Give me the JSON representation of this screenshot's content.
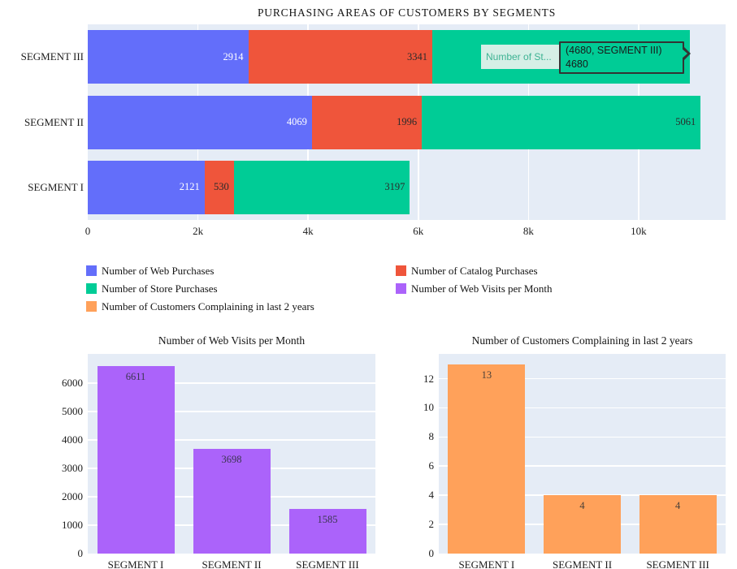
{
  "palette": {
    "blue": "#636EFA",
    "red": "#EF553B",
    "green": "#00CC96",
    "purple": "#AB63FA",
    "orange": "#FFA15A",
    "plot_bg": "#E5ECF6",
    "grid": "#FFFFFF",
    "tick_text": "#1c1c1c",
    "dark_label": "#2b2b2b",
    "white_label": "#ffffff"
  },
  "chart_data": [
    {
      "id": "purchasing-areas",
      "type": "bar",
      "orientation": "horizontal",
      "barmode": "stack",
      "title": "PURCHASING AREAS OF CUSTOMERS BY SEGMENTS",
      "categories": [
        "SEGMENT III",
        "SEGMENT II",
        "SEGMENT I"
      ],
      "series": [
        {
          "name": "Number of Web Purchases",
          "color": "#636EFA",
          "label_color": "#ffffff",
          "values": [
            2914,
            4069,
            2121
          ]
        },
        {
          "name": "Number of Catalog Purchases",
          "color": "#EF553B",
          "label_color": "#2b2b2b",
          "values": [
            3341,
            1996,
            530
          ]
        },
        {
          "name": "Number of Store Purchases",
          "color": "#00CC96",
          "label_color": "#2b2b2b",
          "values": [
            4680,
            5061,
            3197
          ]
        }
      ],
      "xlim": [
        0,
        11580
      ],
      "x_ticks": [
        {
          "v": 0,
          "label": "0"
        },
        {
          "v": 2000,
          "label": "2k"
        },
        {
          "v": 4000,
          "label": "4k"
        },
        {
          "v": 6000,
          "label": "6k"
        },
        {
          "v": 8000,
          "label": "8k"
        },
        {
          "v": 10000,
          "label": "10k"
        }
      ],
      "grid": "vertical white lines at each x tick",
      "legend_position": "below chart, two columns",
      "hovered_point": {
        "series_index": 2,
        "category_index": 0,
        "value": 4680
      }
    },
    {
      "id": "web-visits",
      "type": "bar",
      "title": "Number of Web Visits per Month",
      "categories": [
        "SEGMENT I",
        "SEGMENT II",
        "SEGMENT III"
      ],
      "values": [
        6611,
        3698,
        1585
      ],
      "bar_color": "#AB63FA",
      "label_color": "#3a3650",
      "ylim": [
        0,
        7030
      ],
      "y_ticks": [
        0,
        1000,
        2000,
        3000,
        4000,
        5000,
        6000
      ],
      "grid": "horizontal white lines at each y tick"
    },
    {
      "id": "complaints",
      "type": "bar",
      "title": "Number of Customers Complaining in last 2 years",
      "categories": [
        "SEGMENT I",
        "SEGMENT II",
        "SEGMENT III"
      ],
      "values": [
        13,
        4,
        4
      ],
      "bar_color": "#FFA15A",
      "label_color": "#4a4038",
      "ylim": [
        0,
        13.7
      ],
      "y_ticks": [
        0,
        2,
        4,
        6,
        8,
        10,
        12
      ],
      "grid": "horizontal white lines at each y tick"
    }
  ],
  "tooltip": {
    "trace_label": "Number of St...",
    "line1": "(4680, SEGMENT III)",
    "line2": "4680",
    "bg": "#00CC96",
    "border": "#333333",
    "text_color": "#1a1a1a",
    "trace_bg": "#d5efe6",
    "trace_text_color": "#3fb394"
  },
  "legend": {
    "items": [
      {
        "label": "Number of Web Purchases",
        "color": "#636EFA"
      },
      {
        "label": "Number of Catalog Purchases",
        "color": "#EF553B"
      },
      {
        "label": "Number of Store Purchases",
        "color": "#00CC96"
      },
      {
        "label": "Number of Web Visits per Month",
        "color": "#AB63FA"
      },
      {
        "label": "Number of Customers Complaining in last 2 years",
        "color": "#FFA15A"
      }
    ]
  }
}
